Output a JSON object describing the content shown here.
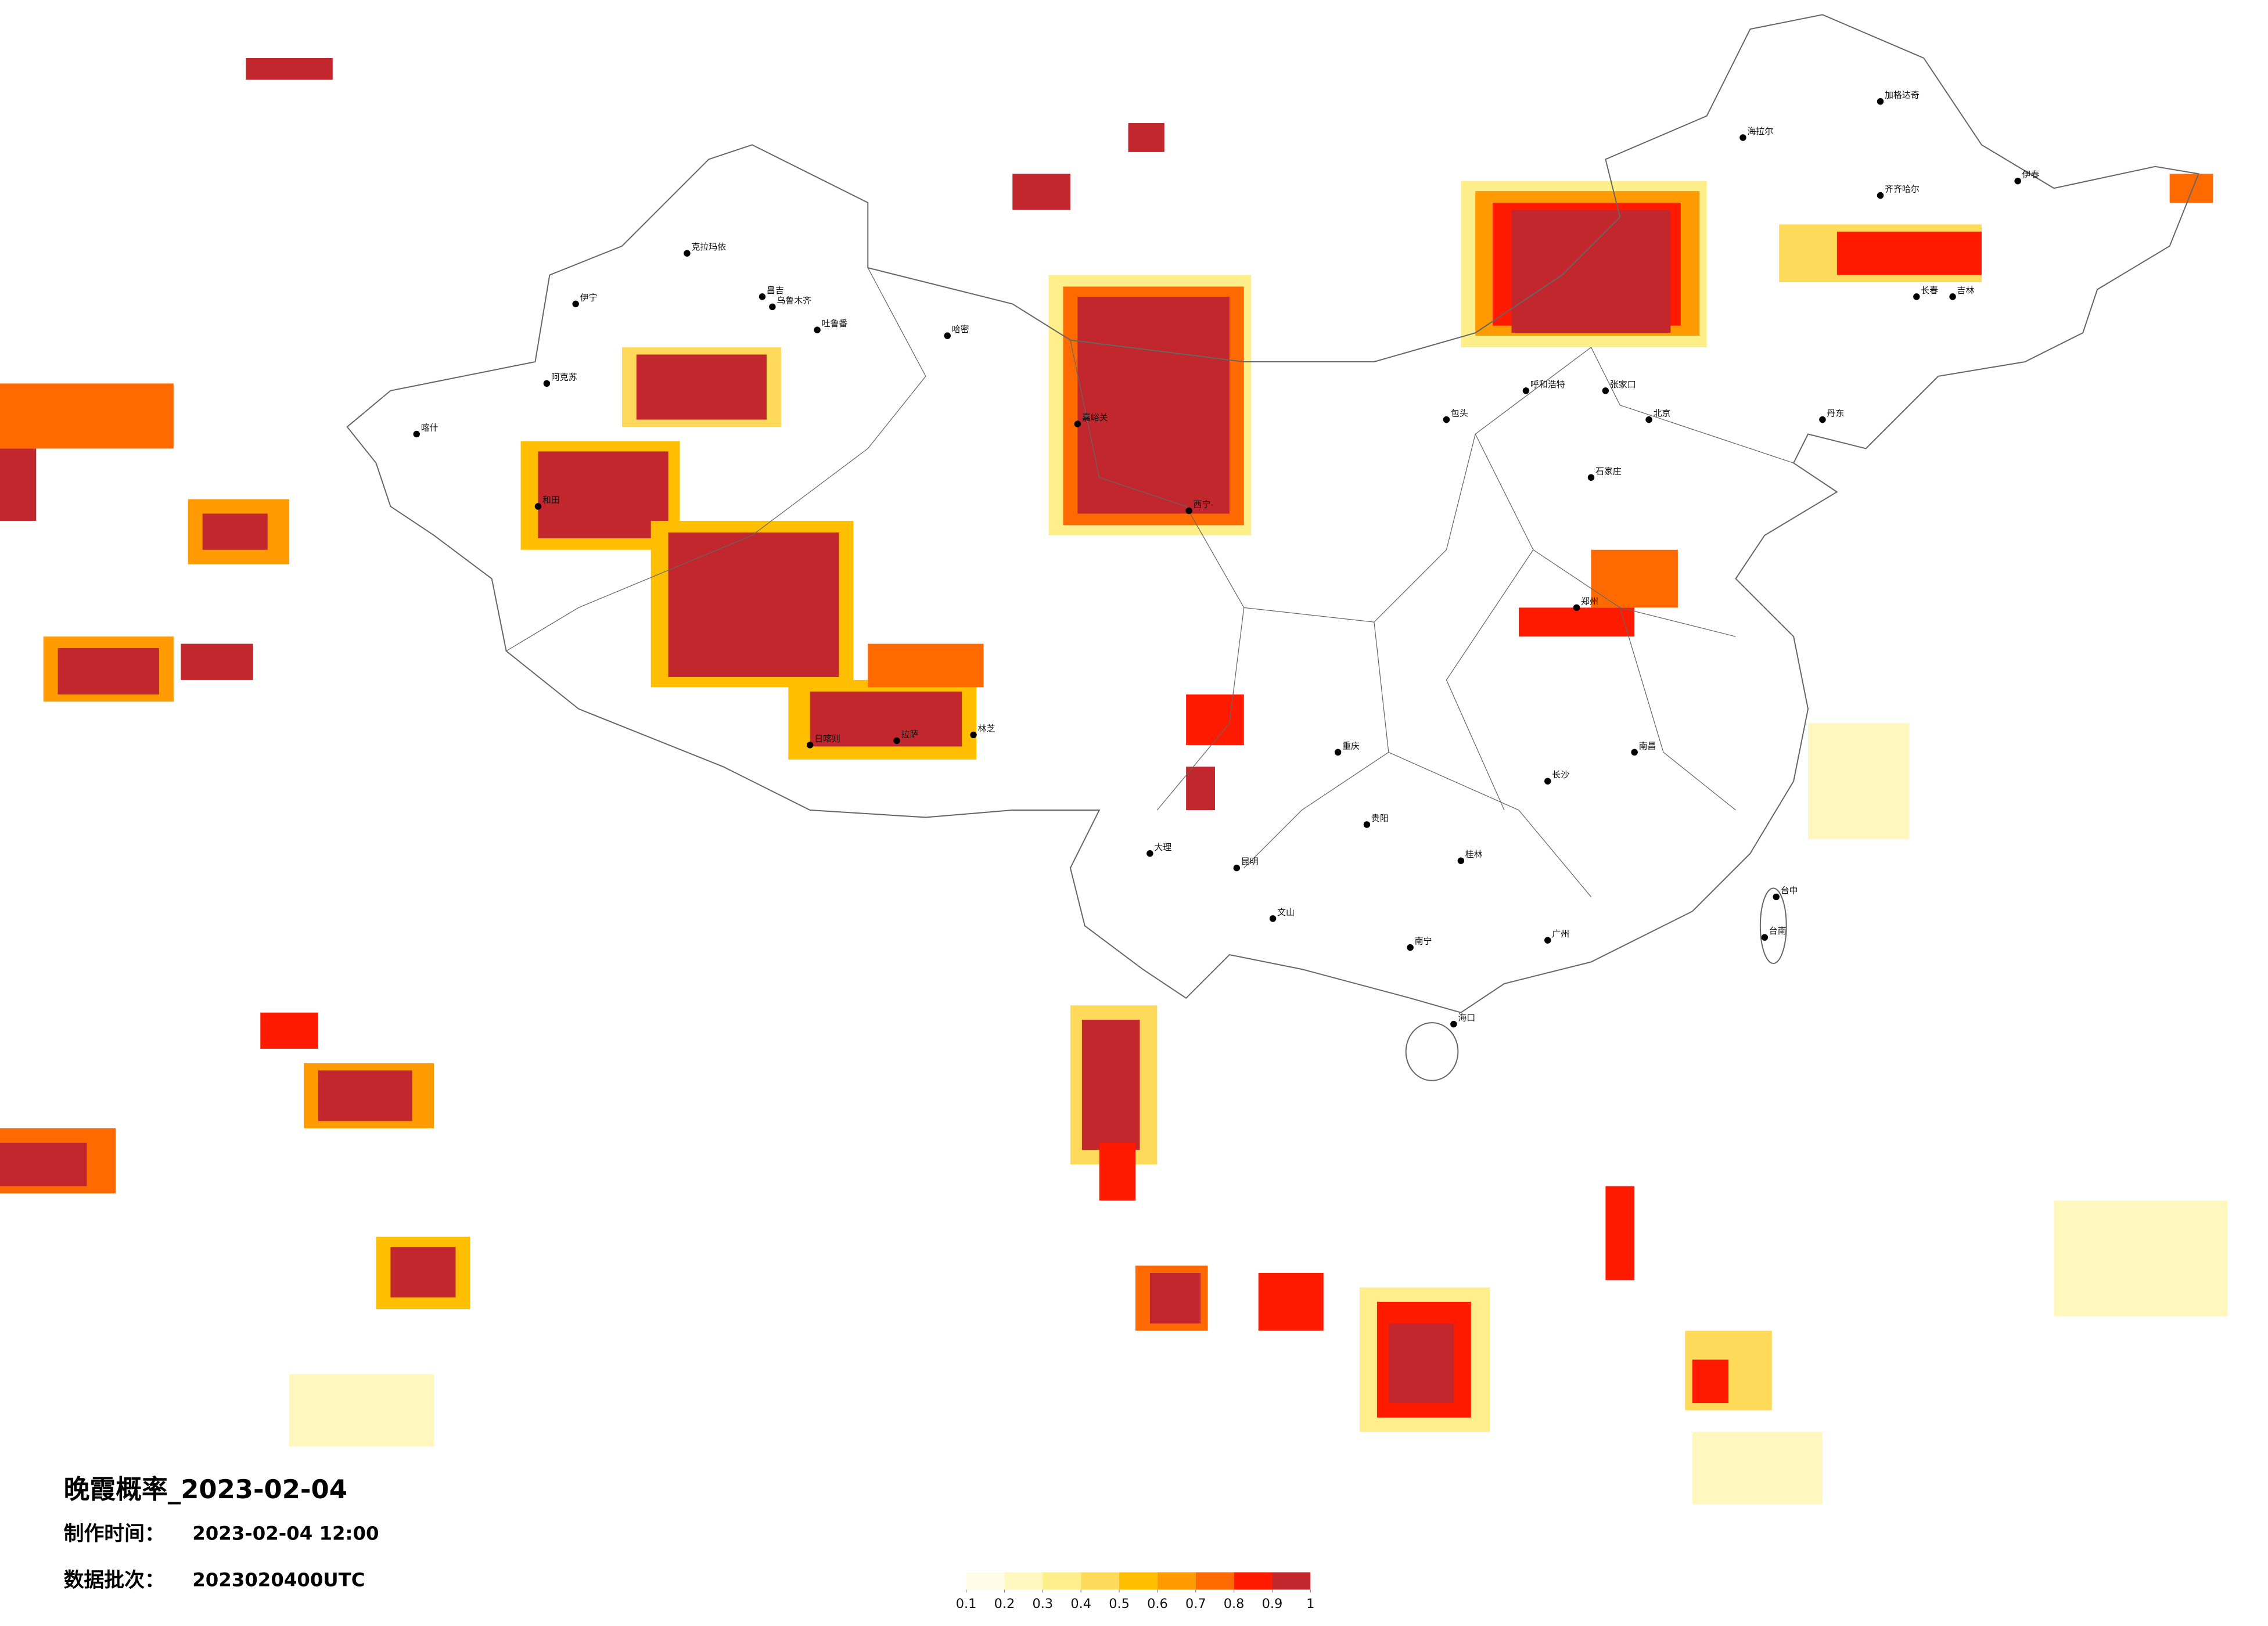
{
  "map": {
    "title": "晚霞概率_2023-02-04",
    "made_label": "制作时间：",
    "made_time": "2023-02-04 12:00",
    "batch_label": "数据批次：",
    "batch": "2023020400UTC",
    "legend": {
      "colors": [
        "#fffce6",
        "#fff7bd",
        "#ffef8a",
        "#ffd95a",
        "#ffbf00",
        "#ff9a00",
        "#ff6a00",
        "#ff1a00",
        "#c1272d"
      ],
      "ticks": [
        0.1,
        0.2,
        0.3,
        0.4,
        0.5,
        0.6,
        0.7,
        0.8,
        0.9,
        1
      ]
    },
    "cities": [
      "克拉玛依",
      "伊宁",
      "昌吉",
      "乌鲁木齐",
      "吐鲁番",
      "哈密",
      "阿克苏",
      "喀什",
      "和田",
      "日喀则",
      "拉萨",
      "林芝",
      "嘉峪关",
      "西宁",
      "呼和浩特",
      "张家口",
      "北京",
      "石家庄",
      "郑州",
      "长沙",
      "南昌",
      "广州",
      "南宁",
      "海口",
      "昆明",
      "贵阳",
      "重庆",
      "齐齐哈尔",
      "长春",
      "台中",
      "台南",
      "大理",
      "文山",
      "桂林",
      "加格达奇",
      "海拉尔",
      "伊春",
      "吉林",
      "丹东",
      "包头"
    ]
  }
}
